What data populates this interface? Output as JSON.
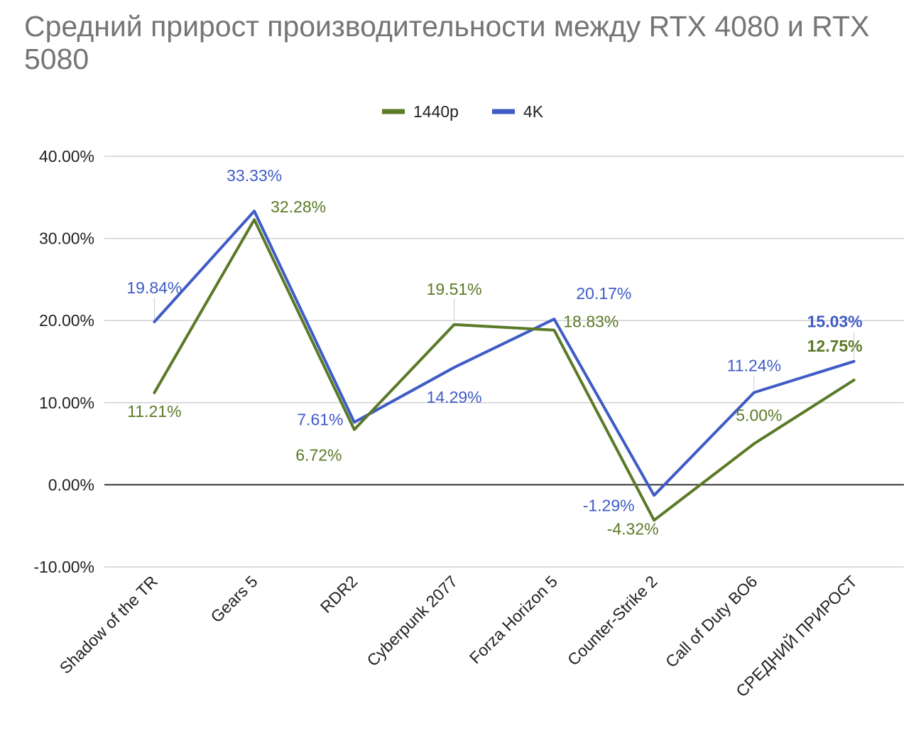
{
  "chart_data": {
    "type": "line",
    "title": "Средний прирост производительности между RTX 4080 и RTX 5080",
    "xlabel": "",
    "ylabel": "",
    "ylim": [
      -10,
      40
    ],
    "yticks": [
      40,
      30,
      20,
      10,
      0,
      -10
    ],
    "ytick_labels": [
      "40.00%",
      "30.00%",
      "20.00%",
      "10.00%",
      "0.00%",
      "-10.00%"
    ],
    "categories": [
      "Shadow of the TR",
      "Gears 5",
      "RDR2",
      "Cyberpunk 2077",
      "Forza Horizon 5",
      "Counter-Strike 2",
      "Call of Duty BO6",
      "СРЕДНИЙ ПРИРОСТ"
    ],
    "series": [
      {
        "name": "1440p",
        "color": "#5b7a27",
        "values": [
          11.21,
          32.28,
          6.72,
          19.51,
          18.83,
          -4.32,
          5.0,
          12.75
        ],
        "labels": [
          "11.21%",
          "32.28%",
          "6.72%",
          "19.51%",
          "18.83%",
          "-4.32%",
          "5.00%",
          "12.75%"
        ]
      },
      {
        "name": "4K",
        "color": "#3f5bc6",
        "values": [
          19.84,
          33.33,
          7.61,
          14.29,
          20.17,
          -1.29,
          11.24,
          15.03
        ],
        "labels": [
          "19.84%",
          "33.33%",
          "7.61%",
          "14.29%",
          "20.17%",
          "-1.29%",
          "11.24%",
          "15.03%"
        ]
      }
    ],
    "legend_position": "top-center",
    "grid": true
  }
}
